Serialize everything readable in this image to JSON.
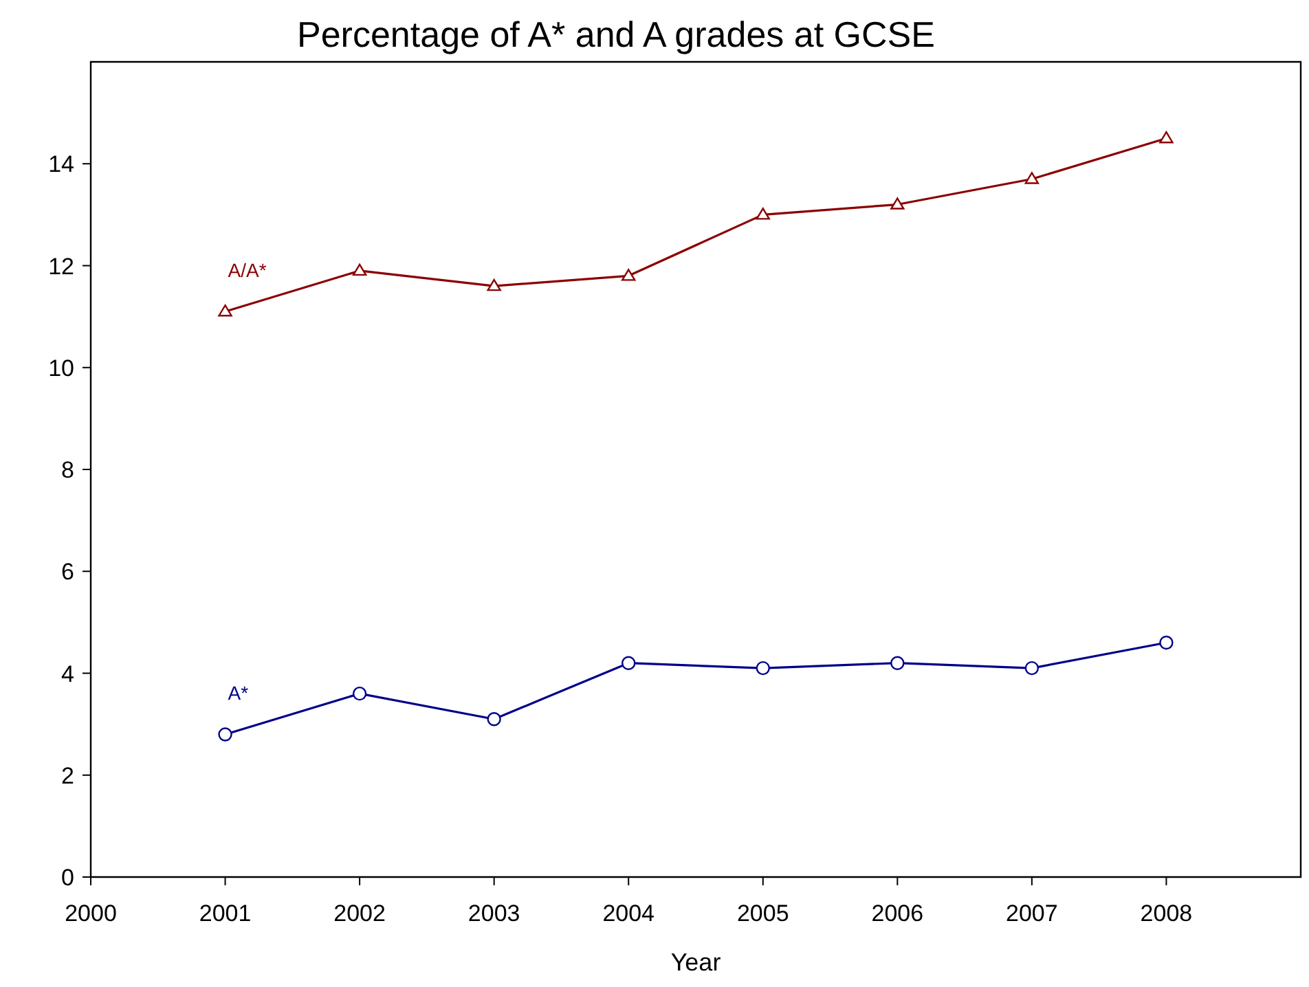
{
  "chart_data": {
    "type": "line",
    "title": "Percentage of A* and A grades at GCSE",
    "xlabel": "Year",
    "x": [
      2001,
      2002,
      2003,
      2004,
      2005,
      2006,
      2007,
      2008
    ],
    "series": [
      {
        "name": "A/A*",
        "color": "#8b0000",
        "marker": "triangle",
        "values": [
          11.1,
          11.9,
          11.6,
          11.8,
          13.0,
          13.2,
          13.7,
          14.5
        ]
      },
      {
        "name": "A*",
        "color": "#00008b",
        "marker": "circle",
        "values": [
          2.8,
          3.6,
          3.1,
          4.2,
          4.1,
          4.2,
          4.1,
          4.6
        ]
      }
    ],
    "xlim": [
      2000,
      2009
    ],
    "xticks": [
      2000,
      2001,
      2002,
      2003,
      2004,
      2005,
      2006,
      2007,
      2008
    ],
    "ylim": [
      0,
      16
    ],
    "yticks": [
      0,
      2,
      4,
      6,
      8,
      10,
      12,
      14
    ],
    "grid": false,
    "legend": false,
    "line_style": "solid"
  }
}
